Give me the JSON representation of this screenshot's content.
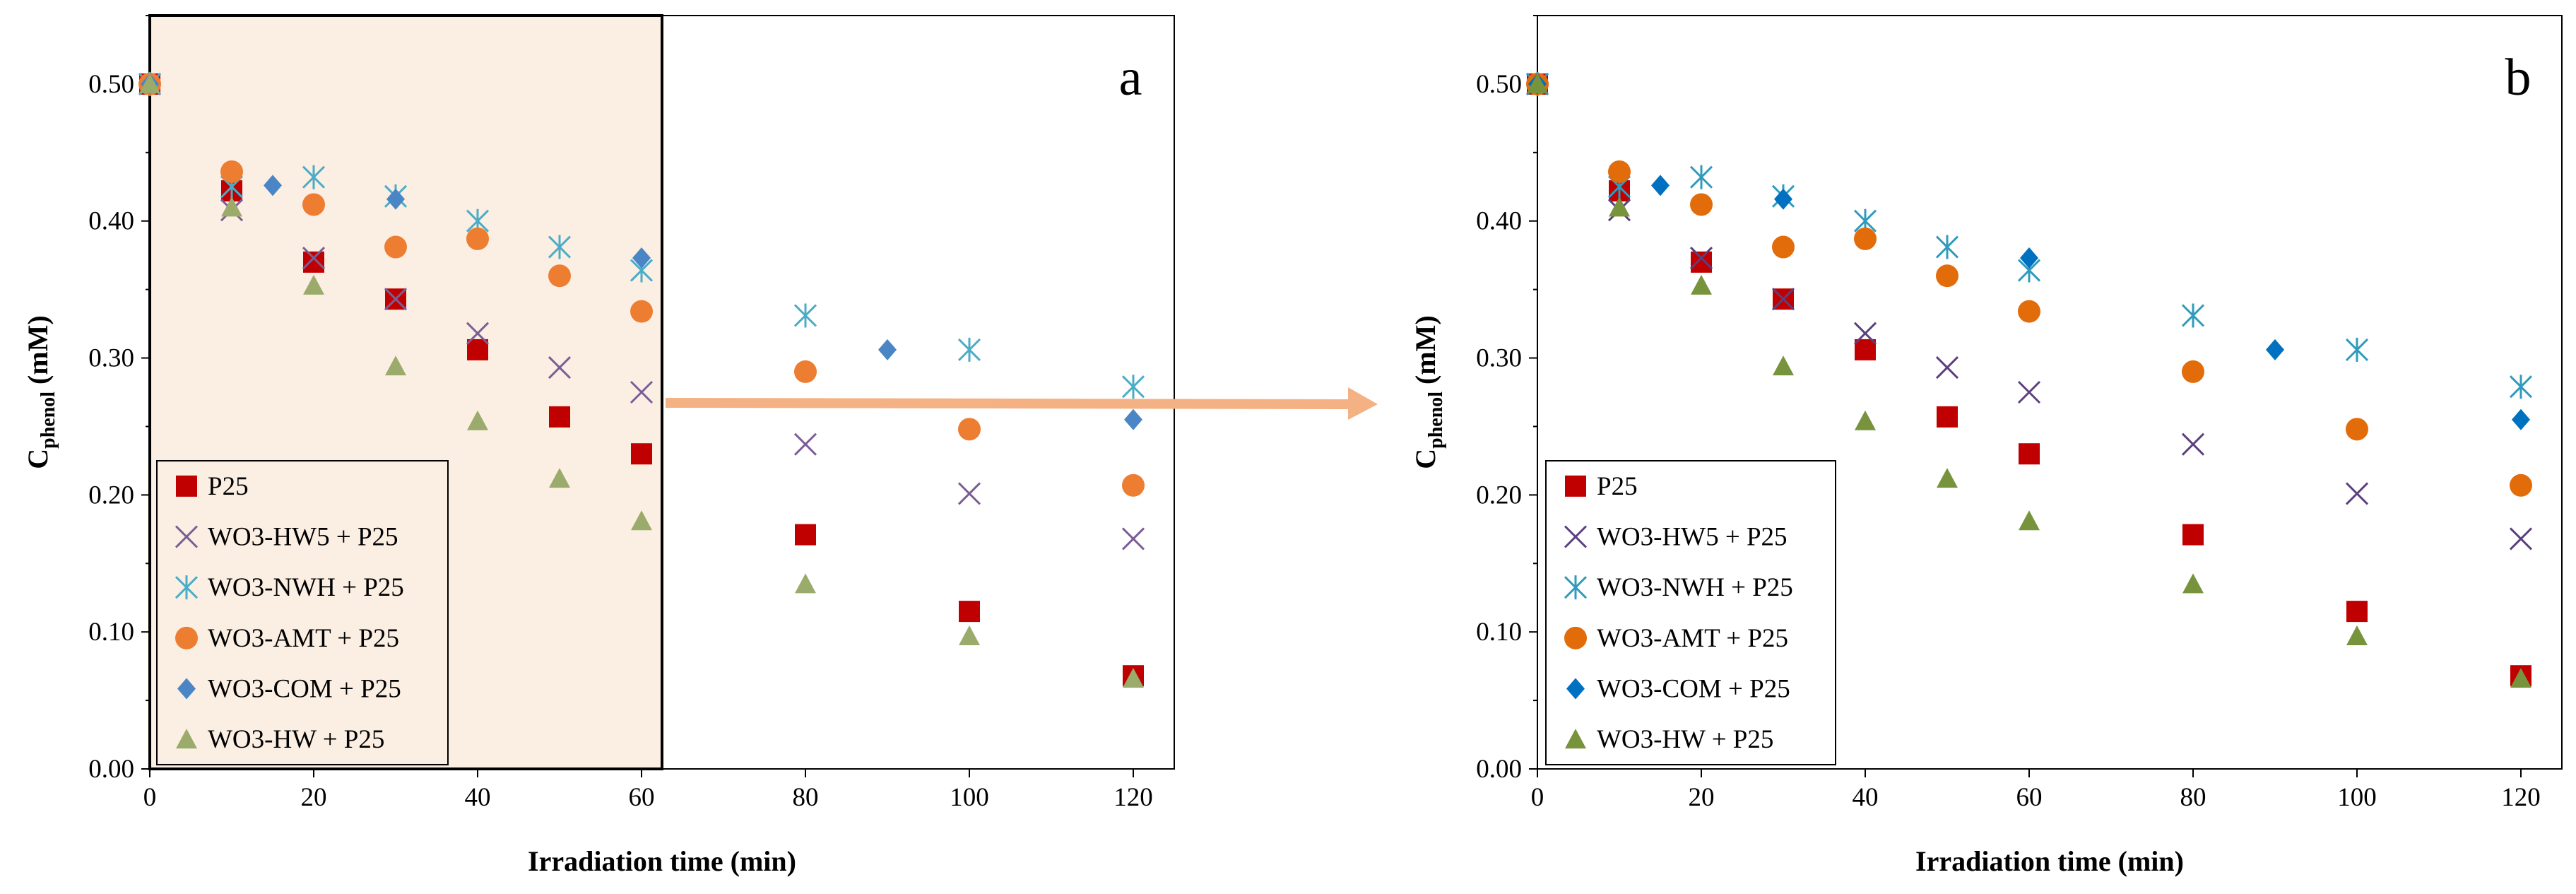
{
  "chart_data": [
    {
      "type": "scatter",
      "panel_label": "a",
      "xlabel": "Irradiation  time (min)",
      "ylabel_main": "C",
      "ylabel_sub": "phenol",
      "ylabel_unit": " (mM)",
      "xlim": [
        0,
        125
      ],
      "ylim": [
        0,
        0.55
      ],
      "x_ticks": [
        0,
        20,
        40,
        60,
        80,
        100,
        120
      ],
      "x_tick_labels": [
        "0",
        "20",
        "40",
        "60",
        "80",
        "100",
        "120"
      ],
      "y_ticks": [
        0,
        0.1,
        0.2,
        0.3,
        0.4,
        0.5
      ],
      "y_tick_labels": [
        "0.00",
        "0.10",
        "0.20",
        "0.30",
        "0.40",
        "0.50"
      ],
      "grid": false,
      "legend_position": "bottom-left",
      "highlight_region_x": [
        0,
        62.5
      ],
      "highlight_color": "#fbeee3",
      "series": [
        {
          "name": "P25",
          "marker": "square",
          "color": "#c00000",
          "x": [
            0,
            10,
            20,
            30,
            40,
            50,
            60,
            80,
            100,
            120
          ],
          "y": [
            0.5,
            0.422,
            0.37,
            0.343,
            0.306,
            0.257,
            0.23,
            0.171,
            0.115,
            0.068
          ]
        },
        {
          "name": "WO3-HW5 + P25",
          "marker": "x",
          "color": "#7b5d96",
          "x": [
            0,
            10,
            20,
            30,
            40,
            50,
            60,
            80,
            100,
            120
          ],
          "y": [
            0.5,
            0.408,
            0.373,
            0.343,
            0.318,
            0.293,
            0.275,
            0.237,
            0.201,
            0.168
          ]
        },
        {
          "name": "WO3-NWH + P25",
          "marker": "asterisk",
          "color": "#4bacc6",
          "x": [
            0,
            10,
            20,
            30,
            40,
            50,
            60,
            80,
            100,
            120
          ],
          "y": [
            0.5,
            0.425,
            0.432,
            0.418,
            0.4,
            0.381,
            0.364,
            0.331,
            0.306,
            0.279
          ]
        },
        {
          "name": "WO3-AMT + P25",
          "marker": "circle",
          "color": "#ed7d31",
          "x": [
            0,
            10,
            20,
            30,
            40,
            50,
            60,
            80,
            100,
            120
          ],
          "y": [
            0.5,
            0.436,
            0.412,
            0.381,
            0.387,
            0.36,
            0.334,
            0.29,
            0.248,
            0.207
          ]
        },
        {
          "name": "WO3-COM + P25",
          "marker": "diamond",
          "color": "#4a86c5",
          "x": [
            0,
            15,
            30,
            60,
            90,
            120
          ],
          "y": [
            0.5,
            0.426,
            0.416,
            0.373,
            0.306,
            0.255
          ]
        },
        {
          "name": "WO3-HW + P25",
          "marker": "triangle",
          "color": "#9bab6b",
          "x": [
            0,
            10,
            20,
            30,
            40,
            50,
            60,
            80,
            100,
            120
          ],
          "y": [
            0.5,
            0.41,
            0.353,
            0.294,
            0.254,
            0.212,
            0.181,
            0.135,
            0.097,
            0.066
          ]
        }
      ]
    },
    {
      "type": "scatter",
      "panel_label": "b",
      "xlabel": "Irradiation  time (min)",
      "ylabel_main": "C",
      "ylabel_sub": "phenol",
      "ylabel_unit": " (mM)",
      "xlim": [
        0,
        125
      ],
      "ylim": [
        0,
        0.55
      ],
      "x_ticks": [
        0,
        20,
        40,
        60,
        80,
        100,
        120
      ],
      "x_tick_labels": [
        "0",
        "20",
        "40",
        "60",
        "80",
        "100",
        "120"
      ],
      "y_ticks": [
        0,
        0.1,
        0.2,
        0.3,
        0.4,
        0.5
      ],
      "y_tick_labels": [
        "0.00",
        "0.10",
        "0.20",
        "0.30",
        "0.40",
        "0.50"
      ],
      "grid": false,
      "legend_position": "bottom-left",
      "series": [
        {
          "name": "P25",
          "marker": "square",
          "color": "#c00000",
          "x": [
            0,
            10,
            20,
            30,
            40,
            50,
            60,
            80,
            100,
            120
          ],
          "y": [
            0.5,
            0.422,
            0.37,
            0.343,
            0.306,
            0.257,
            0.23,
            0.171,
            0.115,
            0.068
          ]
        },
        {
          "name": "WO3-HW5 + P25",
          "marker": "x",
          "color": "#5b3f7e",
          "x": [
            0,
            10,
            20,
            30,
            40,
            50,
            60,
            80,
            100,
            120
          ],
          "y": [
            0.5,
            0.408,
            0.373,
            0.343,
            0.318,
            0.293,
            0.275,
            0.237,
            0.201,
            0.168
          ]
        },
        {
          "name": "WO3-NWH + P25",
          "marker": "asterisk",
          "color": "#2f9bbd",
          "x": [
            0,
            10,
            20,
            30,
            40,
            50,
            60,
            80,
            100,
            120
          ],
          "y": [
            0.5,
            0.425,
            0.432,
            0.418,
            0.4,
            0.381,
            0.364,
            0.331,
            0.306,
            0.279
          ]
        },
        {
          "name": "WO3-AMT + P25",
          "marker": "circle",
          "color": "#e36c0a",
          "x": [
            0,
            10,
            20,
            30,
            40,
            50,
            60,
            80,
            100,
            120
          ],
          "y": [
            0.5,
            0.436,
            0.412,
            0.381,
            0.387,
            0.36,
            0.334,
            0.29,
            0.248,
            0.207
          ]
        },
        {
          "name": "WO3-COM + P25",
          "marker": "diamond",
          "color": "#0070c0",
          "x": [
            0,
            15,
            30,
            60,
            90,
            120
          ],
          "y": [
            0.5,
            0.426,
            0.416,
            0.373,
            0.306,
            0.255
          ]
        },
        {
          "name": "WO3-HW + P25",
          "marker": "triangle",
          "color": "#77933c",
          "x": [
            0,
            10,
            20,
            30,
            40,
            50,
            60,
            80,
            100,
            120
          ],
          "y": [
            0.5,
            0.41,
            0.353,
            0.294,
            0.254,
            0.212,
            0.181,
            0.135,
            0.097,
            0.066
          ]
        }
      ]
    }
  ],
  "arrow": {
    "color": "#f4b183",
    "from_panel": "a",
    "to_panel": "b"
  }
}
